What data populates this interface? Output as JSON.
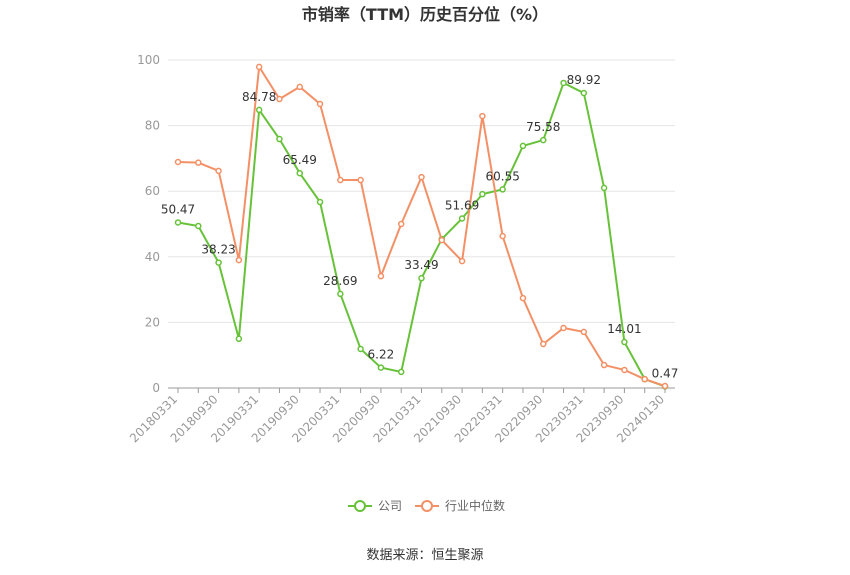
{
  "chart_data": {
    "type": "line",
    "title": "市销率（TTM）历史百分位（%）",
    "source": "数据来源：恒生聚源",
    "categories": [
      "20180331",
      null,
      "20180930",
      null,
      "20190331",
      null,
      "20190930",
      null,
      "20200331",
      null,
      "20200930",
      null,
      "20210331",
      null,
      "20210930",
      null,
      "20220331",
      null,
      "20220930",
      null,
      "20230331",
      null,
      "20230930",
      null,
      "20240130"
    ],
    "series": [
      {
        "name": "公司",
        "color": "#67c23a",
        "values": [
          50.47,
          49.4,
          38.23,
          15.0,
          84.78,
          75.9,
          65.49,
          56.7,
          28.69,
          11.9,
          6.22,
          4.9,
          33.49,
          45.4,
          51.69,
          59.1,
          60.55,
          73.8,
          75.58,
          93.0,
          89.92,
          61.0,
          14.01,
          2.7,
          0.47
        ],
        "value_labels": [
          "50.47",
          null,
          "38.23",
          null,
          "84.78",
          null,
          "65.49",
          null,
          "28.69",
          null,
          "6.22",
          null,
          "33.49",
          null,
          "51.69",
          null,
          "60.55",
          null,
          "75.58",
          null,
          "89.92",
          null,
          "14.01",
          null,
          "0.47"
        ]
      },
      {
        "name": "行业中位数",
        "color": "#f39066",
        "values": [
          68.9,
          68.7,
          66.2,
          39.0,
          97.9,
          88.1,
          91.8,
          86.6,
          63.4,
          63.4,
          34.1,
          50.0,
          64.3,
          45.1,
          38.7,
          82.9,
          46.3,
          27.4,
          13.4,
          18.3,
          17.1,
          7.0,
          5.5,
          2.7,
          0.6
        ]
      }
    ],
    "ylim": [
      0,
      100
    ],
    "yticks": [
      0,
      20,
      40,
      60,
      80,
      100
    ],
    "grid": true
  }
}
